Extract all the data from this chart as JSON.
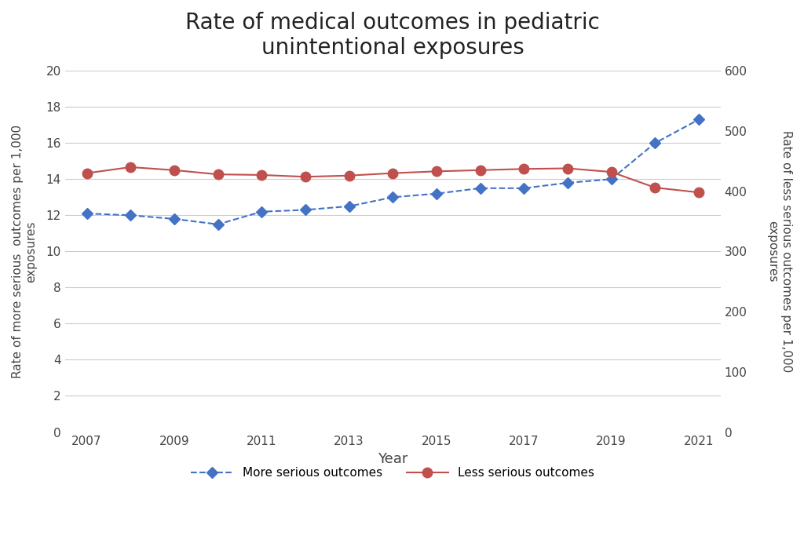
{
  "title": "Rate of medical outcomes in pediatric\nunintentional exposures",
  "xlabel": "Year",
  "ylabel_left": "Rate of more serious  outcomes per 1,000\nexposures",
  "ylabel_right": "Rate of less serious outcomes per 1,000\nexposures",
  "years": [
    2007,
    2008,
    2009,
    2010,
    2011,
    2012,
    2013,
    2014,
    2015,
    2016,
    2017,
    2018,
    2019,
    2020,
    2021
  ],
  "more_serious": [
    12.1,
    12.0,
    11.8,
    11.5,
    12.2,
    12.3,
    12.5,
    13.0,
    13.2,
    13.5,
    13.5,
    13.8,
    14.0,
    16.0,
    17.3
  ],
  "less_serious": [
    430,
    440,
    435,
    428,
    427,
    424,
    426,
    430,
    433,
    435,
    437,
    438,
    432,
    406,
    398
  ],
  "more_serious_color": "#4472C4",
  "less_serious_color": "#C0504D",
  "left_ylim": [
    0,
    20
  ],
  "right_ylim": [
    0,
    600
  ],
  "left_yticks": [
    0,
    2,
    4,
    6,
    8,
    10,
    12,
    14,
    16,
    18,
    20
  ],
  "right_yticks": [
    0,
    100,
    200,
    300,
    400,
    500,
    600
  ],
  "xticks": [
    2007,
    2009,
    2011,
    2013,
    2015,
    2017,
    2019,
    2021
  ],
  "xlim": [
    2006.5,
    2021.5
  ],
  "background_color": "#ffffff",
  "title_fontsize": 20,
  "axis_label_fontsize": 11,
  "tick_fontsize": 11,
  "legend_fontsize": 11,
  "grid_color": "#cccccc"
}
